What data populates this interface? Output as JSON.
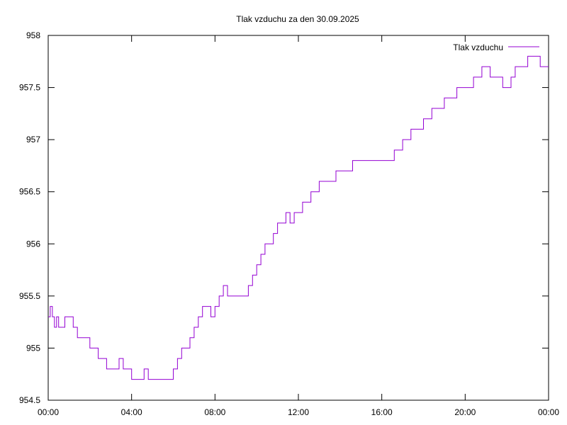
{
  "chart_data": {
    "type": "line",
    "title": "Tlak vzduchu za den 30.09.2025",
    "xlabel": "",
    "ylabel": "",
    "x_unit": "hours",
    "xlim": [
      0,
      24
    ],
    "ylim": [
      954.5,
      958
    ],
    "x_ticks": [
      {
        "value": 0,
        "label": "00:00"
      },
      {
        "value": 4,
        "label": "04:00"
      },
      {
        "value": 8,
        "label": "08:00"
      },
      {
        "value": 12,
        "label": "12:00"
      },
      {
        "value": 16,
        "label": "16:00"
      },
      {
        "value": 20,
        "label": "20:00"
      },
      {
        "value": 24,
        "label": "00:00"
      }
    ],
    "y_ticks": [
      {
        "value": 954.5,
        "label": "954.5"
      },
      {
        "value": 955,
        "label": "955"
      },
      {
        "value": 955.5,
        "label": "955.5"
      },
      {
        "value": 956,
        "label": "956"
      },
      {
        "value": 956.5,
        "label": "956.5"
      },
      {
        "value": 957,
        "label": "957"
      },
      {
        "value": 957.5,
        "label": "957.5"
      },
      {
        "value": 958,
        "label": "958"
      }
    ],
    "grid": false,
    "legend_position": "top-right",
    "series": [
      {
        "name": "Tlak vzduchu",
        "color": "#9400d3",
        "x": [
          0.0,
          0.1,
          0.2,
          0.3,
          0.4,
          0.5,
          0.6,
          0.8,
          1.0,
          1.2,
          1.4,
          1.6,
          1.8,
          2.0,
          2.2,
          2.4,
          2.6,
          2.8,
          3.0,
          3.2,
          3.4,
          3.6,
          3.8,
          4.0,
          4.2,
          4.4,
          4.6,
          4.8,
          5.0,
          5.2,
          5.4,
          5.6,
          5.8,
          6.0,
          6.2,
          6.4,
          6.6,
          6.8,
          7.0,
          7.2,
          7.4,
          7.6,
          7.8,
          8.0,
          8.2,
          8.4,
          8.6,
          8.8,
          9.0,
          9.2,
          9.4,
          9.6,
          9.8,
          10.0,
          10.2,
          10.4,
          10.6,
          10.8,
          11.0,
          11.2,
          11.4,
          11.6,
          11.8,
          12.0,
          12.2,
          12.4,
          12.6,
          12.8,
          13.0,
          13.2,
          13.4,
          13.6,
          13.8,
          14.0,
          14.2,
          14.4,
          14.6,
          14.8,
          15.0,
          15.2,
          15.4,
          15.6,
          15.8,
          16.0,
          16.2,
          16.4,
          16.6,
          16.8,
          17.0,
          17.2,
          17.4,
          17.6,
          17.8,
          18.0,
          18.2,
          18.4,
          18.6,
          18.8,
          19.0,
          19.2,
          19.4,
          19.6,
          19.8,
          20.0,
          20.2,
          20.4,
          20.6,
          20.8,
          21.0,
          21.2,
          21.4,
          21.6,
          21.8,
          22.0,
          22.2,
          22.4,
          22.6,
          22.8,
          23.0,
          23.2,
          23.4,
          23.6,
          23.8,
          24.0
        ],
        "y": [
          955.3,
          955.4,
          955.3,
          955.2,
          955.3,
          955.2,
          955.2,
          955.3,
          955.3,
          955.2,
          955.1,
          955.1,
          955.1,
          955.0,
          955.0,
          954.9,
          954.9,
          954.8,
          954.8,
          954.8,
          954.9,
          954.8,
          954.8,
          954.7,
          954.7,
          954.7,
          954.8,
          954.7,
          954.7,
          954.7,
          954.7,
          954.7,
          954.7,
          954.8,
          954.9,
          955.0,
          955.0,
          955.1,
          955.2,
          955.3,
          955.4,
          955.4,
          955.3,
          955.4,
          955.5,
          955.6,
          955.5,
          955.5,
          955.5,
          955.5,
          955.5,
          955.6,
          955.7,
          955.8,
          955.9,
          956.0,
          956.0,
          956.1,
          956.2,
          956.2,
          956.3,
          956.2,
          956.3,
          956.3,
          956.4,
          956.4,
          956.5,
          956.5,
          956.6,
          956.6,
          956.6,
          956.6,
          956.7,
          956.7,
          956.7,
          956.7,
          956.8,
          956.8,
          956.8,
          956.8,
          956.8,
          956.8,
          956.8,
          956.8,
          956.8,
          956.8,
          956.9,
          956.9,
          957.0,
          957.0,
          957.1,
          957.1,
          957.1,
          957.2,
          957.2,
          957.3,
          957.3,
          957.3,
          957.4,
          957.4,
          957.4,
          957.5,
          957.5,
          957.5,
          957.5,
          957.6,
          957.6,
          957.7,
          957.7,
          957.6,
          957.6,
          957.6,
          957.5,
          957.5,
          957.6,
          957.7,
          957.7,
          957.7,
          957.8,
          957.8,
          957.8,
          957.7,
          957.7,
          957.7
        ]
      }
    ]
  }
}
